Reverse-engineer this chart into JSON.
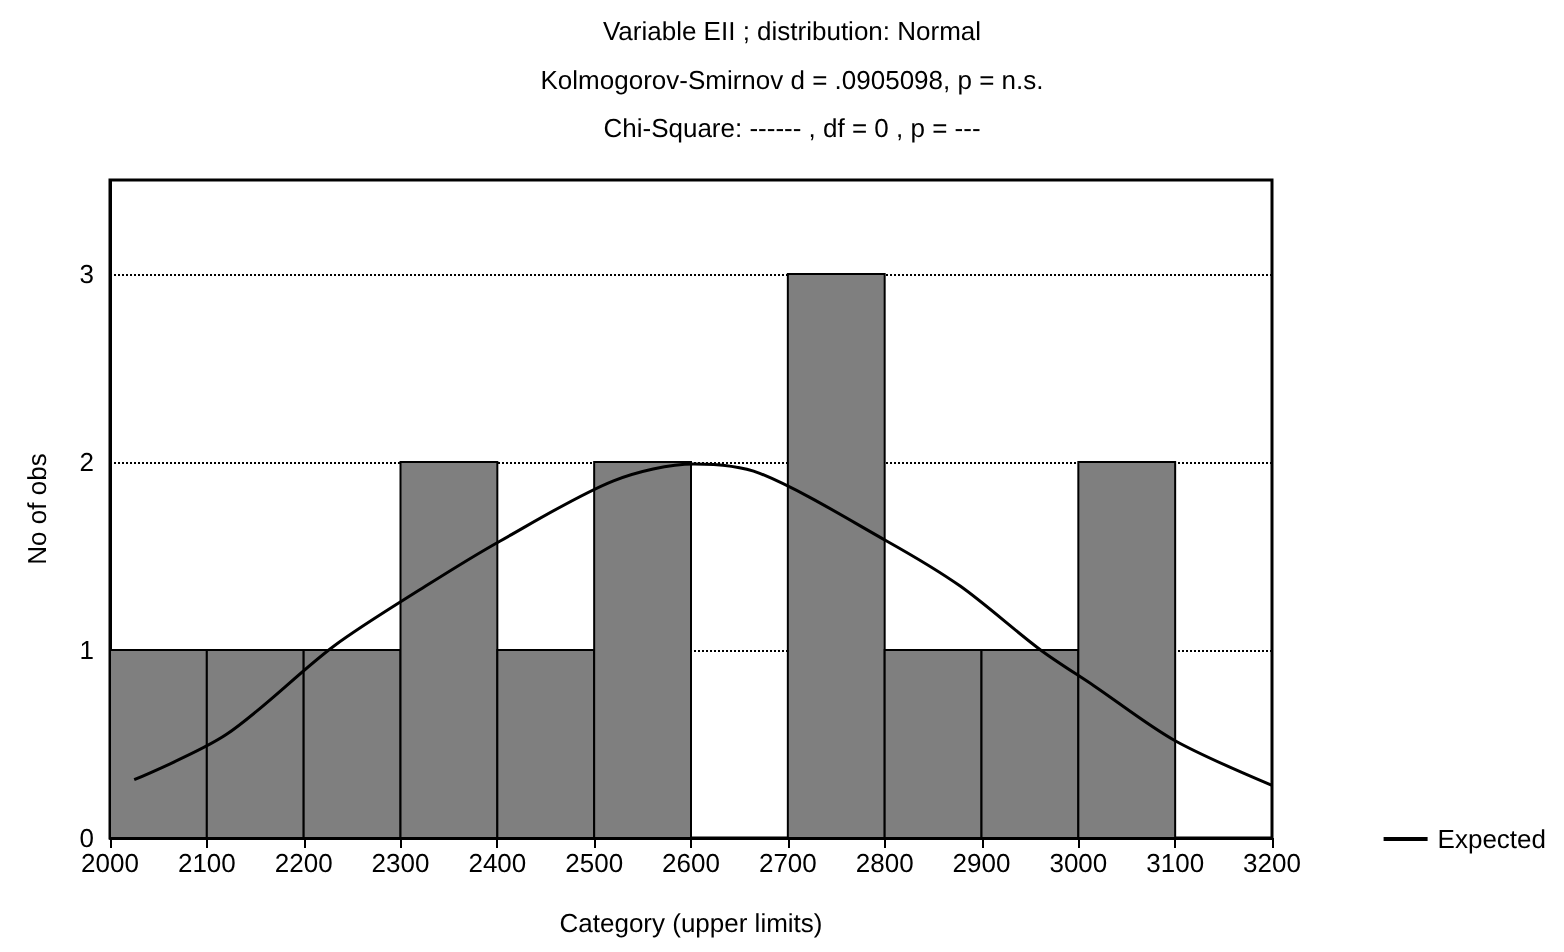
{
  "chart_data": {
    "type": "histogram",
    "title": "Variable EII ; distribution: Normal",
    "subtitle": "Kolmogorov-Smirnov d = .0905098, p = n.s.\nChi-Square: ------ , df = 0 , p = ---",
    "xlabel": "Category (upper limits)",
    "ylabel": "No of obs",
    "bins": [
      2000,
      2100,
      2200,
      2300,
      2400,
      2500,
      2600,
      2700,
      2800,
      2900,
      3000,
      3100
    ],
    "series": [
      {
        "color": "#7f7f7f",
        "values": [
          1,
          1,
          1,
          2,
          1,
          2,
          0,
          3,
          1,
          1,
          2
        ]
      },
      {
        "type": "line",
        "name": "Expected",
        "color": "#000000",
        "x": [
          2025,
          2120,
          2231,
          2326,
          2403,
          2520,
          2603,
          2671,
          2802,
          2878,
          2961,
          3016,
          3099,
          3200
        ],
        "values": [
          0.31,
          0.55,
          1.02,
          1.34,
          1.58,
          1.9,
          1.99,
          1.94,
          1.58,
          1.34,
          1.0,
          0.81,
          0.52,
          0.28
        ]
      }
    ],
    "xlim": [
      2000,
      3200
    ],
    "xticks": [
      2000,
      2100,
      2200,
      2300,
      2400,
      2500,
      2600,
      2700,
      2800,
      2900,
      3000,
      3100,
      3200
    ],
    "ylim": [
      0,
      3.5
    ],
    "yticks": [
      0,
      1,
      2,
      3
    ],
    "grid": "y",
    "legend": "bottom right",
    "marker": "none",
    "line_style": "solid"
  }
}
